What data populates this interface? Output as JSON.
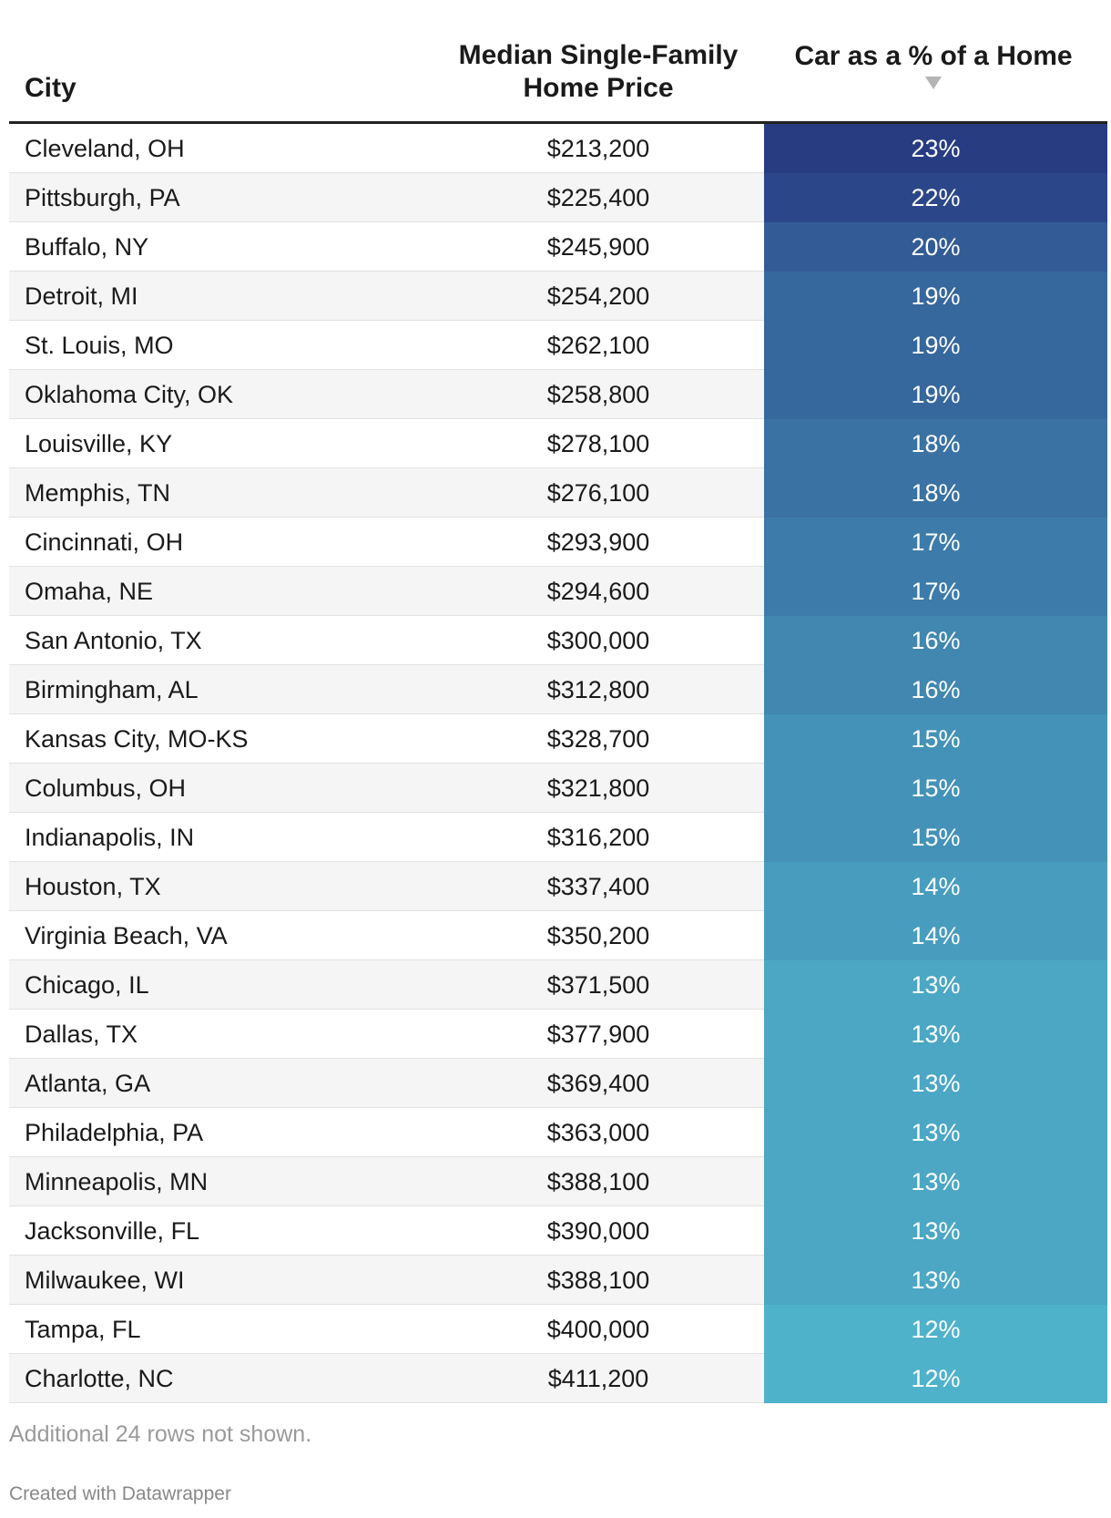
{
  "chart_data": {
    "type": "table",
    "columns": [
      "City",
      "Median Single-Family Home Price",
      "Car as a % of a Home"
    ],
    "sorted_by": "Car as a % of a Home",
    "sort_order": "descending",
    "color_scale": {
      "low": "#4fb2cb",
      "high": "#283c82"
    },
    "rows": [
      {
        "city": "Cleveland, OH",
        "price": "$213,200",
        "pct": "23%",
        "pct_value": 23
      },
      {
        "city": "Pittsburgh, PA",
        "price": "$225,400",
        "pct": "22%",
        "pct_value": 22
      },
      {
        "city": "Buffalo, NY",
        "price": "$245,900",
        "pct": "20%",
        "pct_value": 20
      },
      {
        "city": "Detroit, MI",
        "price": "$254,200",
        "pct": "19%",
        "pct_value": 19
      },
      {
        "city": "St. Louis, MO",
        "price": "$262,100",
        "pct": "19%",
        "pct_value": 19
      },
      {
        "city": "Oklahoma City, OK",
        "price": "$258,800",
        "pct": "19%",
        "pct_value": 19
      },
      {
        "city": "Louisville, KY",
        "price": "$278,100",
        "pct": "18%",
        "pct_value": 18
      },
      {
        "city": "Memphis, TN",
        "price": "$276,100",
        "pct": "18%",
        "pct_value": 18
      },
      {
        "city": "Cincinnati, OH",
        "price": "$293,900",
        "pct": "17%",
        "pct_value": 17
      },
      {
        "city": "Omaha, NE",
        "price": "$294,600",
        "pct": "17%",
        "pct_value": 17
      },
      {
        "city": "San Antonio, TX",
        "price": "$300,000",
        "pct": "16%",
        "pct_value": 16
      },
      {
        "city": "Birmingham, AL",
        "price": "$312,800",
        "pct": "16%",
        "pct_value": 16
      },
      {
        "city": "Kansas City, MO-KS",
        "price": "$328,700",
        "pct": "15%",
        "pct_value": 15
      },
      {
        "city": "Columbus, OH",
        "price": "$321,800",
        "pct": "15%",
        "pct_value": 15
      },
      {
        "city": "Indianapolis, IN",
        "price": "$316,200",
        "pct": "15%",
        "pct_value": 15
      },
      {
        "city": "Houston, TX",
        "price": "$337,400",
        "pct": "14%",
        "pct_value": 14
      },
      {
        "city": "Virginia Beach, VA",
        "price": "$350,200",
        "pct": "14%",
        "pct_value": 14
      },
      {
        "city": "Chicago, IL",
        "price": "$371,500",
        "pct": "13%",
        "pct_value": 13
      },
      {
        "city": "Dallas, TX",
        "price": "$377,900",
        "pct": "13%",
        "pct_value": 13
      },
      {
        "city": "Atlanta, GA",
        "price": "$369,400",
        "pct": "13%",
        "pct_value": 13
      },
      {
        "city": "Philadelphia, PA",
        "price": "$363,000",
        "pct": "13%",
        "pct_value": 13
      },
      {
        "city": "Minneapolis, MN",
        "price": "$388,100",
        "pct": "13%",
        "pct_value": 13
      },
      {
        "city": "Jacksonville, FL",
        "price": "$390,000",
        "pct": "13%",
        "pct_value": 13
      },
      {
        "city": "Milwaukee, WI",
        "price": "$388,100",
        "pct": "13%",
        "pct_value": 13
      },
      {
        "city": "Tampa, FL",
        "price": "$400,000",
        "pct": "12%",
        "pct_value": 12
      },
      {
        "city": "Charlotte, NC",
        "price": "$411,200",
        "pct": "12%",
        "pct_value": 12
      }
    ]
  },
  "header": {
    "city": "City",
    "price_line1": "Median Single-Family",
    "price_line2": "Home Price",
    "pct": "Car as a % of a Home"
  },
  "footer": {
    "note": "Additional 24 rows not shown.",
    "credit": "Created with Datawrapper"
  }
}
